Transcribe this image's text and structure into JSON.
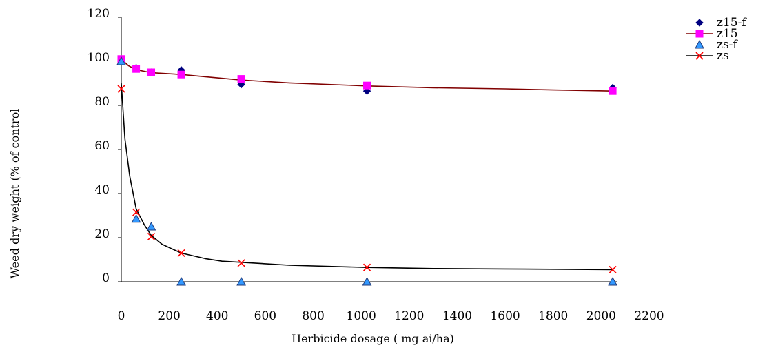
{
  "chart_data": {
    "type": "scatter",
    "title": "",
    "xlabel": "Herbicide dosage ( mg ai/ha)",
    "ylabel": "Weed dry weight (% of control",
    "xlim": [
      0,
      2200
    ],
    "ylim": [
      0,
      120
    ],
    "xticks": [
      0,
      200,
      400,
      600,
      800,
      1000,
      1200,
      1400,
      1600,
      1800,
      2000,
      2200
    ],
    "yticks": [
      0,
      20,
      40,
      60,
      80,
      100,
      120
    ],
    "grid": false,
    "legend": "top-right",
    "series": [
      {
        "name": "z15-f",
        "kind": "points",
        "marker": "diamond",
        "color": "#000080",
        "x": [
          0,
          62,
          125,
          250,
          500,
          1024,
          2048
        ],
        "y": [
          100,
          97,
          95,
          96,
          89.5,
          86.5,
          88
        ]
      },
      {
        "name": "z15",
        "kind": "line+points",
        "marker": "square",
        "color": "#FF00FF",
        "line_color": "#800000",
        "x": [
          0,
          62,
          125,
          250,
          500,
          1024,
          2048
        ],
        "y": [
          101,
          96.5,
          95,
          94,
          92,
          89,
          86.5
        ],
        "curve": [
          [
            0,
            101
          ],
          [
            30,
            98
          ],
          [
            62,
            96.2
          ],
          [
            125,
            94.8
          ],
          [
            250,
            94
          ],
          [
            350,
            93
          ],
          [
            500,
            91.5
          ],
          [
            700,
            90.2
          ],
          [
            1024,
            88.8
          ],
          [
            1300,
            88
          ],
          [
            1600,
            87.5
          ],
          [
            1800,
            87
          ],
          [
            2048,
            86.5
          ]
        ]
      },
      {
        "name": "zs-f",
        "kind": "points",
        "marker": "triangle",
        "color": "#3399FF",
        "x": [
          0,
          62,
          125,
          250,
          500,
          1024,
          2048
        ],
        "y": [
          100,
          28.5,
          25,
          0,
          0,
          0,
          0
        ]
      },
      {
        "name": "zs",
        "kind": "line+points",
        "marker": "x",
        "color": "#FF0000",
        "line_color": "#000000",
        "x": [
          0,
          62,
          125,
          250,
          500,
          1024,
          2048
        ],
        "y": [
          87.5,
          31.5,
          20.5,
          13,
          8.5,
          6.5,
          5.5
        ],
        "curve": [
          [
            0,
            90
          ],
          [
            15,
            65
          ],
          [
            35,
            48
          ],
          [
            62,
            33
          ],
          [
            95,
            26
          ],
          [
            125,
            21
          ],
          [
            170,
            17
          ],
          [
            250,
            13
          ],
          [
            350,
            10.5
          ],
          [
            420,
            9.3
          ],
          [
            500,
            8.8
          ],
          [
            700,
            7.5
          ],
          [
            1024,
            6.5
          ],
          [
            1300,
            6
          ],
          [
            1600,
            5.8
          ],
          [
            2048,
            5.5
          ]
        ]
      }
    ]
  }
}
